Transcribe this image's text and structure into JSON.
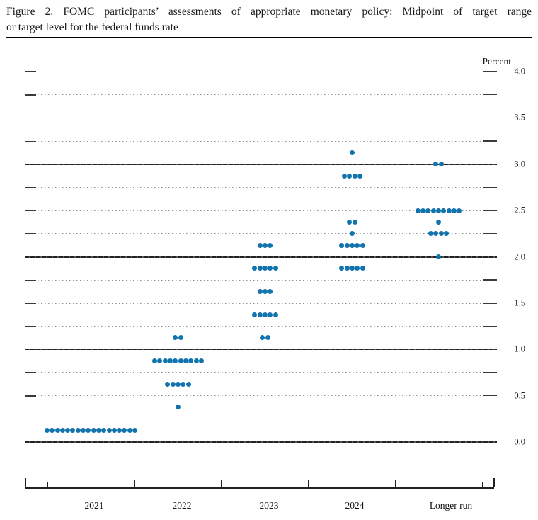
{
  "figure": {
    "label": "Figure 2.",
    "title_line1": "Figure 2.  FOMC participants’ assessments of appropriate monetary policy:  Midpoint of target range",
    "title_line2": "or target level for the federal funds rate"
  },
  "chart_data": {
    "type": "scatter",
    "subtype": "fomc-dot-plot",
    "title": "FOMC participants’ assessments of appropriate monetary policy: Midpoint of target range or target level for the federal funds rate",
    "ylabel": "Percent",
    "ylim": [
      0.0,
      4.0
    ],
    "y_gridline_step": 0.25,
    "y_solid_lines": [
      0.0,
      1.0,
      2.0,
      3.0
    ],
    "y_dashed_top_line": 4.0,
    "ytick_values": [
      4.0,
      3.5,
      3.0,
      2.5,
      2.0,
      1.5,
      1.0,
      0.5,
      0.0
    ],
    "ytick_labels": [
      "4.0",
      "3.5",
      "3.0",
      "2.5",
      "2.0",
      "1.5",
      "1.0",
      "0.5",
      "0.0"
    ],
    "categories": [
      "2021",
      "2022",
      "2023",
      "2024",
      "Longer run"
    ],
    "series": [
      {
        "category": "2021",
        "dots": [
          {
            "rate": 0.125,
            "count": 18
          }
        ]
      },
      {
        "category": "2022",
        "dots": [
          {
            "rate": 0.375,
            "count": 1
          },
          {
            "rate": 0.625,
            "count": 5
          },
          {
            "rate": 0.875,
            "count": 10
          },
          {
            "rate": 1.125,
            "count": 2
          }
        ]
      },
      {
        "category": "2023",
        "dots": [
          {
            "rate": 1.125,
            "count": 2
          },
          {
            "rate": 1.375,
            "count": 5
          },
          {
            "rate": 1.625,
            "count": 3
          },
          {
            "rate": 1.875,
            "count": 5
          },
          {
            "rate": 2.125,
            "count": 3
          }
        ]
      },
      {
        "category": "2024",
        "dots": [
          {
            "rate": 1.875,
            "count": 5
          },
          {
            "rate": 2.125,
            "count": 5
          },
          {
            "rate": 2.25,
            "count": 1
          },
          {
            "rate": 2.375,
            "count": 2
          },
          {
            "rate": 2.875,
            "count": 4
          },
          {
            "rate": 3.125,
            "count": 1
          }
        ]
      },
      {
        "category": "Longer run",
        "dots": [
          {
            "rate": 2.0,
            "count": 1
          },
          {
            "rate": 2.25,
            "count": 4
          },
          {
            "rate": 2.375,
            "count": 1
          },
          {
            "rate": 2.5,
            "count": 9
          },
          {
            "rate": 3.0,
            "count": 2
          }
        ]
      }
    ],
    "dot_color": "#1274ae",
    "grid": true,
    "legend_position": "none"
  }
}
